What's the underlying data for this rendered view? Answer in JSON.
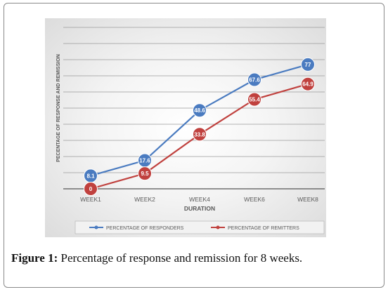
{
  "caption": {
    "label": "Figure 1:",
    "text": "Percentage of response and remission for 8 weeks."
  },
  "colors": {
    "responders": "#4a7bc0",
    "remitters": "#c0413e",
    "gridline": "#9a9a9a",
    "axis_text": "#595959"
  },
  "chart_data": {
    "type": "line",
    "title": "",
    "xlabel": "DURATION",
    "ylabel": "PECENTAGE OF RESPONSE AND REMISSION",
    "categories": [
      "WEEK1",
      "WEEK2",
      "WEEK4",
      "WEEK6",
      "WEEK8"
    ],
    "ylim": [
      0,
      100
    ],
    "grid": true,
    "legend_position": "bottom",
    "series": [
      {
        "name": "PERCENTAGE OF RESPONDERS",
        "values": [
          8.1,
          17.6,
          48.6,
          67.6,
          77
        ],
        "labels": [
          "8.1",
          "17.6",
          "48.6",
          "67.6",
          "77"
        ]
      },
      {
        "name": "PERCENTAGE OF REMITTERS",
        "values": [
          0,
          9.5,
          33.8,
          55.4,
          64.9
        ],
        "labels": [
          "0",
          "9.5",
          "33.8",
          "55.4",
          "64.9"
        ]
      }
    ]
  }
}
